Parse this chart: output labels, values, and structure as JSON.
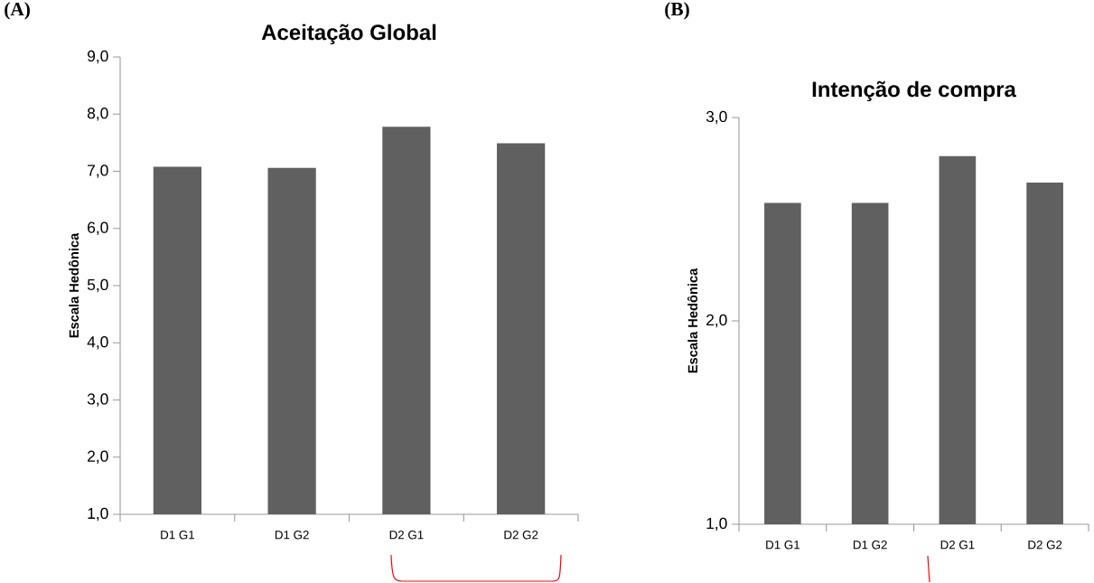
{
  "chart_data": [
    {
      "type": "bar",
      "title": "Aceitação Global",
      "ylabel": "Escala Hedônica",
      "annotations": [
        "(A)"
      ],
      "categories": [
        "D1 G1",
        "D1 G2",
        "D2 G1",
        "D2 G2"
      ],
      "values": [
        7.08,
        7.06,
        7.78,
        7.49
      ],
      "color": "#606060",
      "ylim": [
        1,
        9
      ],
      "yticks": [
        {
          "value": 1,
          "label": "1,0"
        },
        {
          "value": 2,
          "label": "2,0"
        },
        {
          "value": 3,
          "label": "3,0"
        },
        {
          "value": 4,
          "label": "4,0"
        },
        {
          "value": 5,
          "label": "5,0"
        },
        {
          "value": 6,
          "label": "6,0"
        },
        {
          "value": 7,
          "label": "7,0"
        },
        {
          "value": 8,
          "label": "8,0"
        },
        {
          "value": 9,
          "label": "9,0"
        }
      ]
    },
    {
      "type": "bar",
      "title": "Intenção de compra",
      "ylabel": "Escala Hedônica",
      "annotations": [
        "(B)"
      ],
      "categories": [
        "D1 G1",
        "D1 G2",
        "D2 G1",
        "D2 G2"
      ],
      "values": [
        2.58,
        2.58,
        2.81,
        2.68
      ],
      "color": "#606060",
      "ylim": [
        1,
        3
      ],
      "yticks": [
        {
          "value": 1,
          "label": "1,0"
        },
        {
          "value": 2,
          "label": "2,0"
        },
        {
          "value": 3,
          "label": "3,0"
        }
      ]
    }
  ]
}
